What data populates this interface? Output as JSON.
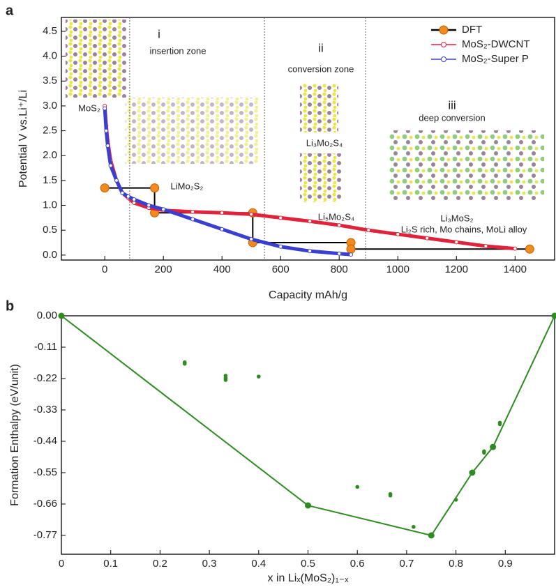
{
  "chart_data": [
    {
      "type": "line",
      "panel": "a",
      "xlabel": "Capacity mAh/g",
      "ylabel": "Potential V vs.Li⁺/Li",
      "xlim": [
        -148,
        1535
      ],
      "ylim": [
        -0.1,
        4.78
      ],
      "xticks": [
        0,
        200,
        400,
        600,
        800,
        1000,
        1200,
        1400
      ],
      "yticks": [
        {
          "value": 0,
          "label": "0.0"
        },
        0.5,
        {
          "value": 1,
          "label": "1.0"
        },
        1.5,
        {
          "value": 2,
          "label": "2.0"
        },
        2.5,
        {
          "value": 3,
          "label": "3.0"
        },
        3.5,
        {
          "value": 4,
          "label": "4.0"
        },
        4.5
      ],
      "zone_lines": [
        85,
        545,
        890
      ],
      "legend": "upper right",
      "series": [
        {
          "name": "DFT",
          "color": "#f28a1e",
          "line_color": "#000000",
          "x": [
            0,
            170,
            170,
            505,
            505,
            840,
            840,
            1450
          ],
          "values": [
            1.35,
            1.35,
            0.85,
            0.85,
            0.25,
            0.25,
            0.12,
            0.12
          ]
        },
        {
          "name": "MoS₂-DWCNT",
          "color": "#e0233a",
          "x": [
            0,
            5,
            10,
            20,
            40,
            60,
            80,
            100,
            150,
            200,
            300,
            400,
            500,
            600,
            700,
            800,
            900,
            1000,
            1100,
            1200,
            1300,
            1400
          ],
          "values": [
            3.0,
            2.6,
            2.3,
            1.9,
            1.5,
            1.25,
            1.15,
            1.05,
            0.95,
            0.9,
            0.87,
            0.85,
            0.82,
            0.75,
            0.68,
            0.6,
            0.5,
            0.42,
            0.34,
            0.26,
            0.18,
            0.13
          ]
        },
        {
          "name": "MoS₂-Super P",
          "color": "#3a3fd4",
          "x": [
            0,
            5,
            10,
            20,
            40,
            60,
            80,
            100,
            150,
            200,
            300,
            400,
            500,
            600,
            700,
            800,
            840
          ],
          "values": [
            2.95,
            2.5,
            2.2,
            1.8,
            1.5,
            1.25,
            1.18,
            1.12,
            1.0,
            0.92,
            0.72,
            0.52,
            0.32,
            0.17,
            0.08,
            0.03,
            0.01
          ]
        }
      ],
      "annotations": [
        "i",
        "insertion zone",
        "ii",
        "conversion zone",
        "iii",
        "deep conversion",
        "MoS₂",
        "LiMo₂S₂",
        "Li₃Mo₂S₄",
        "Li₅Mo₂S₄",
        "Li₃MoS₂",
        "Li₂S rich, Mo chains, MoLi alloy"
      ]
    },
    {
      "type": "scatter",
      "panel": "b",
      "xlabel": "x in Liₓ(MoS₂)₁₋ₓ",
      "ylabel": "Formation Enthalpy (eV/unit)",
      "xlim": [
        0,
        1
      ],
      "ylim": [
        -0.836,
        0
      ],
      "xticks": [
        0,
        0.1,
        0.2,
        0.3,
        0.4,
        0.5,
        0.6,
        0.7,
        0.8,
        0.9
      ],
      "yticks": [
        {
          "value": 0,
          "label": "0.00"
        },
        -0.11,
        -0.22,
        -0.33,
        -0.44,
        -0.55,
        -0.66,
        -0.77
      ],
      "series": [
        {
          "color": "#2e8b22",
          "line": true,
          "x": [
            0,
            0.5,
            0.75,
            0.833,
            0.875,
            1
          ],
          "values": [
            0,
            -0.665,
            -0.77,
            -0.55,
            -0.46,
            0
          ]
        },
        {
          "color": "#2e8b22",
          "x": [
            0.25,
            0.25,
            0.333,
            0.333,
            0.333,
            0.4,
            0.6,
            0.667,
            0.667,
            0.714,
            0.8,
            0.857,
            0.857,
            0.889,
            0.889
          ],
          "values": [
            -0.163,
            -0.168,
            -0.21,
            -0.218,
            -0.225,
            -0.213,
            -0.6,
            -0.625,
            -0.63,
            -0.74,
            -0.645,
            -0.475,
            -0.48,
            -0.375,
            -0.38
          ]
        }
      ]
    }
  ]
}
